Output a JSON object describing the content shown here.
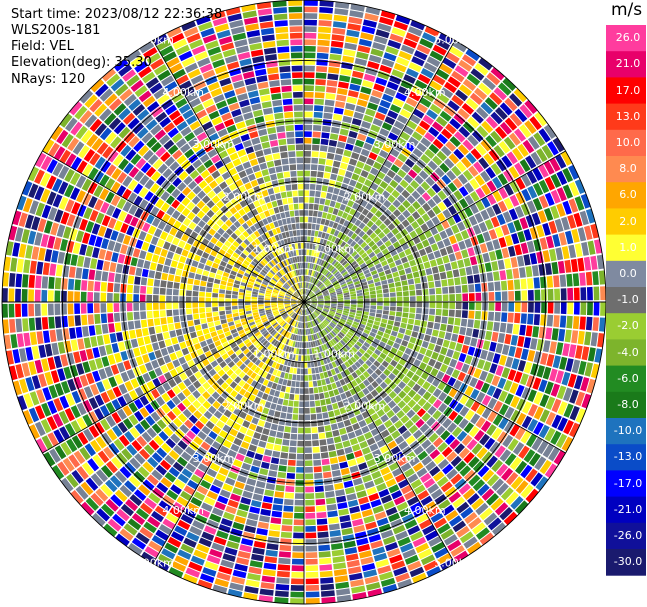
{
  "meta": {
    "start_time": "Start time: 2023/08/12 22:36:38",
    "instrument": "WLS200s-181",
    "field": "Field: VEL",
    "elevation": "Elevation(deg): 35.30",
    "nrays": "NRays: 120"
  },
  "colorbar": {
    "unit": "m/s",
    "ticks": [
      "26.0",
      "21.0",
      "17.0",
      "13.0",
      "10.0",
      "8.0",
      "6.0",
      "2.0",
      "1.0",
      "0.0",
      "-1.0",
      "-2.0",
      "-4.0",
      "-6.0",
      "-8.0",
      "-10.0",
      "-13.0",
      "-17.0",
      "-21.0",
      "-26.0",
      "-30.0"
    ],
    "colors": [
      "#ff3c9e",
      "#e8006a",
      "#ff0000",
      "#ff3a1a",
      "#ff6a4a",
      "#ff8a50",
      "#ffa600",
      "#ffcc00",
      "#ffff33",
      "#7f8aa0",
      "#6e6e6e",
      "#9acd32",
      "#7db42c",
      "#228b22",
      "#1a7a1a",
      "#1e73be",
      "#0a4cc8",
      "#0000ff",
      "#0000c0",
      "#10109a",
      "#1a1a6e"
    ]
  },
  "chart_data": {
    "type": "heatmap",
    "projection": "polar (PPI scan)",
    "field": "VEL",
    "units": "m/s",
    "color_scale": [
      -30.0,
      26.0
    ],
    "n_rays": 120,
    "elevation_deg": 35.3,
    "range_ring_labels": [
      "1.00km",
      "2.00km",
      "3.00km",
      "4.00km",
      "5.00km"
    ],
    "range_rings_km": [
      1,
      2,
      3,
      4,
      5
    ],
    "max_range_km": 5.0,
    "description_of_field": "near-range (<2.5 km) values mostly 0 to +2 m/s (yellow) on west/north-west side and -1 to -4 m/s (green) on east side; beyond ~3 km noisy values spanning full -30..26 m/s scale"
  }
}
